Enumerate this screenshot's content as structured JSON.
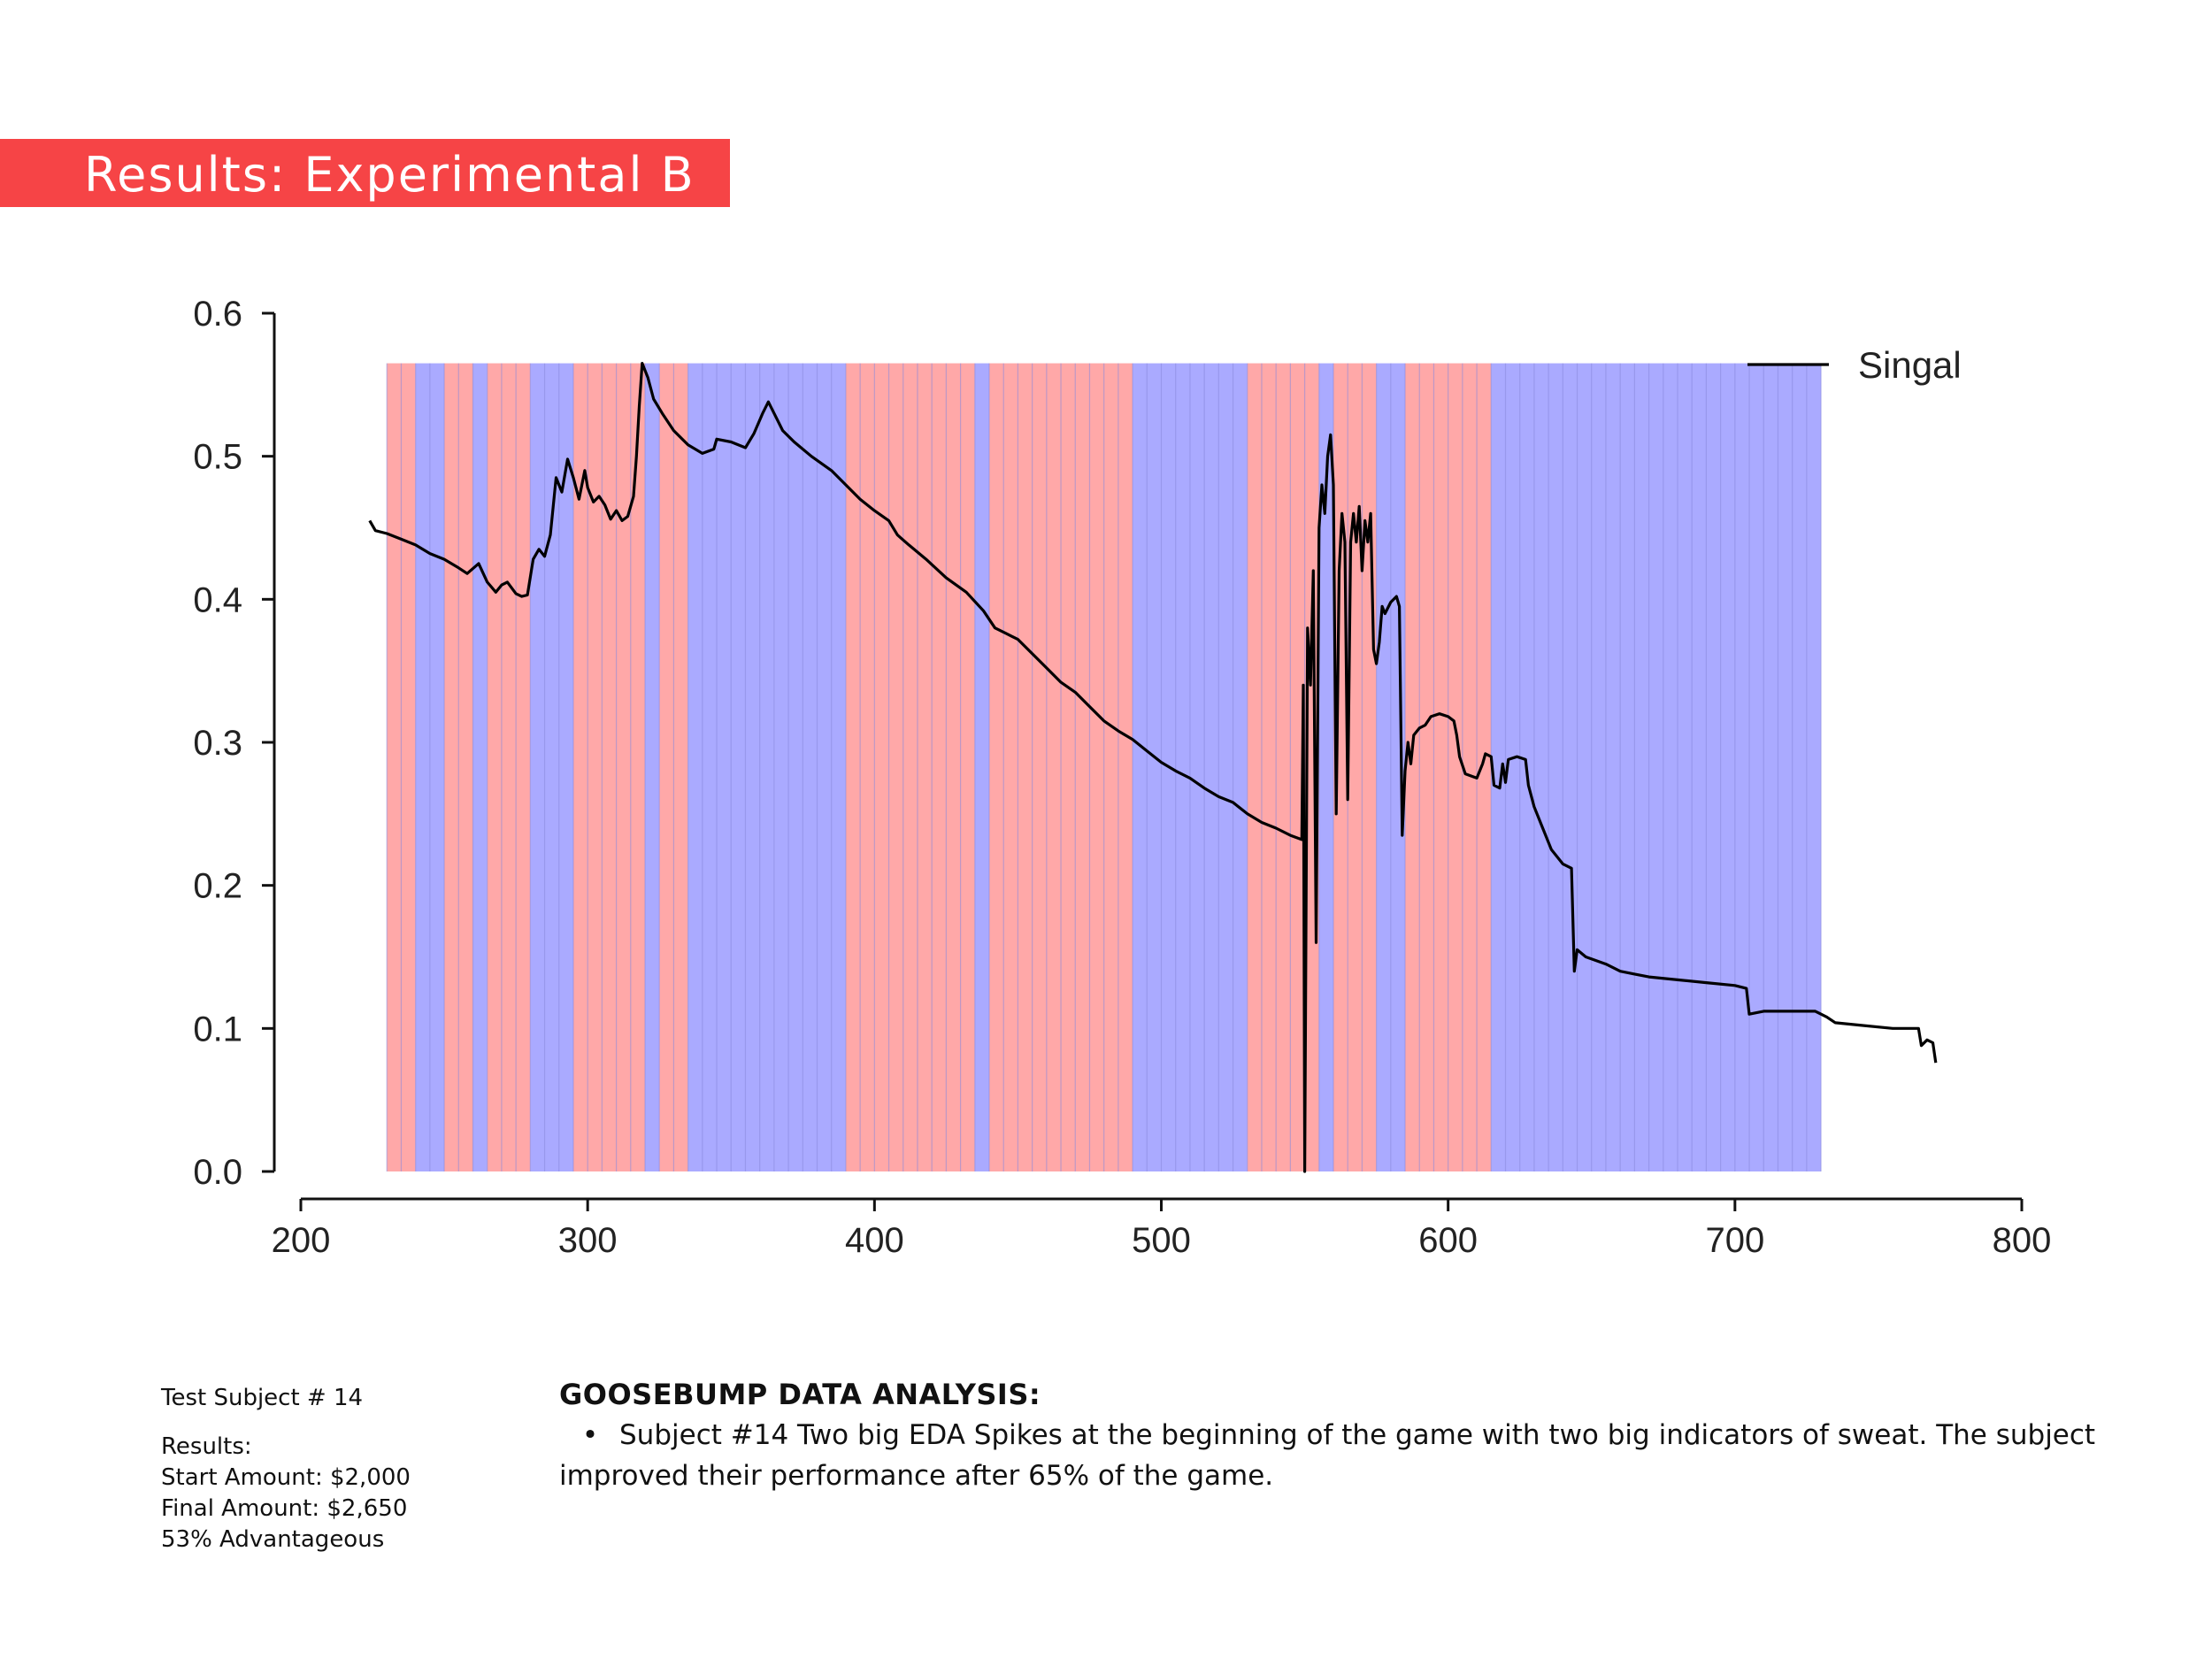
{
  "slide": {
    "title": "Results: Experimental B",
    "title_bg": "#f64446"
  },
  "info": {
    "subject": "Test Subject # 14",
    "results_label": "Results:",
    "start": "Start Amount: $2,000",
    "final": "Final Amount: $2,650",
    "advantage": "53% Advantageous"
  },
  "analysis": {
    "heading": "GOOSEBUMP DATA ANALYSIS:",
    "bullet": "•",
    "text": "Subject #14 Two big EDA Spikes at the beginning of the game with two big indicators of sweat. The subject improved their performance after 65% of the game."
  },
  "chart_data": {
    "type": "line",
    "title": "",
    "xlabel": "",
    "ylabel": "",
    "xlim": [
      200,
      800
    ],
    "ylim": [
      0,
      0.6
    ],
    "x_ticks": [
      200,
      300,
      400,
      500,
      600,
      700,
      800
    ],
    "y_ticks": [
      0.0,
      0.1,
      0.2,
      0.3,
      0.4,
      0.5,
      0.6
    ],
    "y_tick_labels": [
      "0.0",
      "0.1",
      "0.2",
      "0.3",
      "0.4",
      "0.5",
      "0.6"
    ],
    "grid": false,
    "legend": {
      "position": "top-right",
      "entries": [
        "Singal"
      ]
    },
    "band_width": 5,
    "band_top": 0.565,
    "band_colors": {
      "red": "#ffa8a8",
      "blue": "#aaaaff",
      "separator": "#8888dd"
    },
    "bands": [
      {
        "from": 230,
        "to": 240,
        "color": "red"
      },
      {
        "from": 240,
        "to": 250,
        "color": "blue"
      },
      {
        "from": 250,
        "to": 260,
        "color": "red"
      },
      {
        "from": 260,
        "to": 265,
        "color": "blue"
      },
      {
        "from": 265,
        "to": 280,
        "color": "red"
      },
      {
        "from": 280,
        "to": 295,
        "color": "blue"
      },
      {
        "from": 295,
        "to": 320,
        "color": "red"
      },
      {
        "from": 320,
        "to": 325,
        "color": "blue"
      },
      {
        "from": 325,
        "to": 335,
        "color": "red"
      },
      {
        "from": 335,
        "to": 390,
        "color": "blue"
      },
      {
        "from": 390,
        "to": 435,
        "color": "red"
      },
      {
        "from": 435,
        "to": 440,
        "color": "blue"
      },
      {
        "from": 440,
        "to": 490,
        "color": "red"
      },
      {
        "from": 490,
        "to": 530,
        "color": "blue"
      },
      {
        "from": 530,
        "to": 555,
        "color": "red"
      },
      {
        "from": 555,
        "to": 560,
        "color": "blue"
      },
      {
        "from": 560,
        "to": 575,
        "color": "red"
      },
      {
        "from": 575,
        "to": 585,
        "color": "blue"
      },
      {
        "from": 585,
        "to": 615,
        "color": "red"
      },
      {
        "from": 615,
        "to": 730,
        "color": "blue"
      }
    ],
    "series": [
      {
        "name": "Singal",
        "color": "#000000",
        "points": [
          [
            224,
            0.455
          ],
          [
            226,
            0.448
          ],
          [
            230,
            0.446
          ],
          [
            235,
            0.442
          ],
          [
            240,
            0.438
          ],
          [
            245,
            0.432
          ],
          [
            250,
            0.428
          ],
          [
            255,
            0.422
          ],
          [
            258,
            0.418
          ],
          [
            262,
            0.425
          ],
          [
            265,
            0.412
          ],
          [
            268,
            0.405
          ],
          [
            270,
            0.41
          ],
          [
            272,
            0.412
          ],
          [
            275,
            0.404
          ],
          [
            277,
            0.402
          ],
          [
            279,
            0.403
          ],
          [
            281,
            0.428
          ],
          [
            283,
            0.435
          ],
          [
            285,
            0.43
          ],
          [
            287,
            0.445
          ],
          [
            289,
            0.485
          ],
          [
            291,
            0.475
          ],
          [
            293,
            0.498
          ],
          [
            295,
            0.485
          ],
          [
            297,
            0.47
          ],
          [
            299,
            0.49
          ],
          [
            300,
            0.478
          ],
          [
            302,
            0.468
          ],
          [
            304,
            0.472
          ],
          [
            306,
            0.466
          ],
          [
            308,
            0.456
          ],
          [
            310,
            0.462
          ],
          [
            312,
            0.455
          ],
          [
            314,
            0.458
          ],
          [
            316,
            0.472
          ],
          [
            317,
            0.5
          ],
          [
            318,
            0.535
          ],
          [
            319,
            0.565
          ],
          [
            321,
            0.555
          ],
          [
            323,
            0.54
          ],
          [
            326,
            0.53
          ],
          [
            330,
            0.518
          ],
          [
            335,
            0.508
          ],
          [
            340,
            0.502
          ],
          [
            344,
            0.505
          ],
          [
            345,
            0.512
          ],
          [
            350,
            0.51
          ],
          [
            355,
            0.506
          ],
          [
            358,
            0.516
          ],
          [
            361,
            0.53
          ],
          [
            363,
            0.538
          ],
          [
            365,
            0.53
          ],
          [
            368,
            0.518
          ],
          [
            372,
            0.51
          ],
          [
            378,
            0.5
          ],
          [
            385,
            0.49
          ],
          [
            390,
            0.48
          ],
          [
            395,
            0.47
          ],
          [
            400,
            0.462
          ],
          [
            405,
            0.455
          ],
          [
            408,
            0.445
          ],
          [
            412,
            0.438
          ],
          [
            418,
            0.428
          ],
          [
            425,
            0.415
          ],
          [
            432,
            0.405
          ],
          [
            438,
            0.392
          ],
          [
            442,
            0.38
          ],
          [
            446,
            0.376
          ],
          [
            450,
            0.372
          ],
          [
            455,
            0.362
          ],
          [
            460,
            0.352
          ],
          [
            465,
            0.342
          ],
          [
            470,
            0.335
          ],
          [
            475,
            0.325
          ],
          [
            480,
            0.315
          ],
          [
            485,
            0.308
          ],
          [
            490,
            0.302
          ],
          [
            495,
            0.294
          ],
          [
            500,
            0.286
          ],
          [
            505,
            0.28
          ],
          [
            510,
            0.275
          ],
          [
            515,
            0.268
          ],
          [
            520,
            0.262
          ],
          [
            525,
            0.258
          ],
          [
            530,
            0.25
          ],
          [
            535,
            0.244
          ],
          [
            540,
            0.24
          ],
          [
            545,
            0.235
          ],
          [
            549,
            0.232
          ],
          [
            549.5,
            0.34
          ],
          [
            550,
            0.0
          ],
          [
            551,
            0.38
          ],
          [
            552,
            0.34
          ],
          [
            553,
            0.42
          ],
          [
            554,
            0.16
          ],
          [
            555,
            0.45
          ],
          [
            556,
            0.48
          ],
          [
            557,
            0.46
          ],
          [
            558,
            0.5
          ],
          [
            559,
            0.515
          ],
          [
            560,
            0.48
          ],
          [
            561,
            0.25
          ],
          [
            562,
            0.42
          ],
          [
            563,
            0.46
          ],
          [
            564,
            0.44
          ],
          [
            565,
            0.26
          ],
          [
            566,
            0.44
          ],
          [
            567,
            0.46
          ],
          [
            568,
            0.44
          ],
          [
            569,
            0.465
          ],
          [
            570,
            0.42
          ],
          [
            571,
            0.455
          ],
          [
            572,
            0.44
          ],
          [
            573,
            0.46
          ],
          [
            574,
            0.365
          ],
          [
            575,
            0.355
          ],
          [
            576,
            0.37
          ],
          [
            577,
            0.395
          ],
          [
            578,
            0.39
          ],
          [
            580,
            0.398
          ],
          [
            582,
            0.402
          ],
          [
            583,
            0.395
          ],
          [
            584,
            0.235
          ],
          [
            585,
            0.28
          ],
          [
            586,
            0.3
          ],
          [
            587,
            0.285
          ],
          [
            588,
            0.305
          ],
          [
            590,
            0.31
          ],
          [
            592,
            0.312
          ],
          [
            594,
            0.318
          ],
          [
            597,
            0.32
          ],
          [
            600,
            0.318
          ],
          [
            602,
            0.315
          ],
          [
            603,
            0.305
          ],
          [
            604,
            0.29
          ],
          [
            606,
            0.278
          ],
          [
            610,
            0.275
          ],
          [
            612,
            0.285
          ],
          [
            613,
            0.292
          ],
          [
            615,
            0.29
          ],
          [
            616,
            0.27
          ],
          [
            618,
            0.268
          ],
          [
            619,
            0.285
          ],
          [
            620,
            0.272
          ],
          [
            621,
            0.288
          ],
          [
            624,
            0.29
          ],
          [
            627,
            0.288
          ],
          [
            628,
            0.27
          ],
          [
            630,
            0.255
          ],
          [
            633,
            0.24
          ],
          [
            636,
            0.225
          ],
          [
            640,
            0.215
          ],
          [
            643,
            0.212
          ],
          [
            644,
            0.14
          ],
          [
            645,
            0.155
          ],
          [
            648,
            0.15
          ],
          [
            655,
            0.145
          ],
          [
            660,
            0.14
          ],
          [
            665,
            0.138
          ],
          [
            670,
            0.136
          ],
          [
            680,
            0.134
          ],
          [
            690,
            0.132
          ],
          [
            700,
            0.13
          ],
          [
            704,
            0.128
          ],
          [
            705,
            0.11
          ],
          [
            710,
            0.112
          ],
          [
            720,
            0.112
          ],
          [
            728,
            0.112
          ],
          [
            732,
            0.108
          ],
          [
            735,
            0.104
          ],
          [
            745,
            0.102
          ],
          [
            755,
            0.1
          ],
          [
            764,
            0.1
          ],
          [
            765,
            0.088
          ],
          [
            767,
            0.092
          ],
          [
            769,
            0.09
          ],
          [
            770,
            0.076
          ]
        ]
      }
    ]
  }
}
